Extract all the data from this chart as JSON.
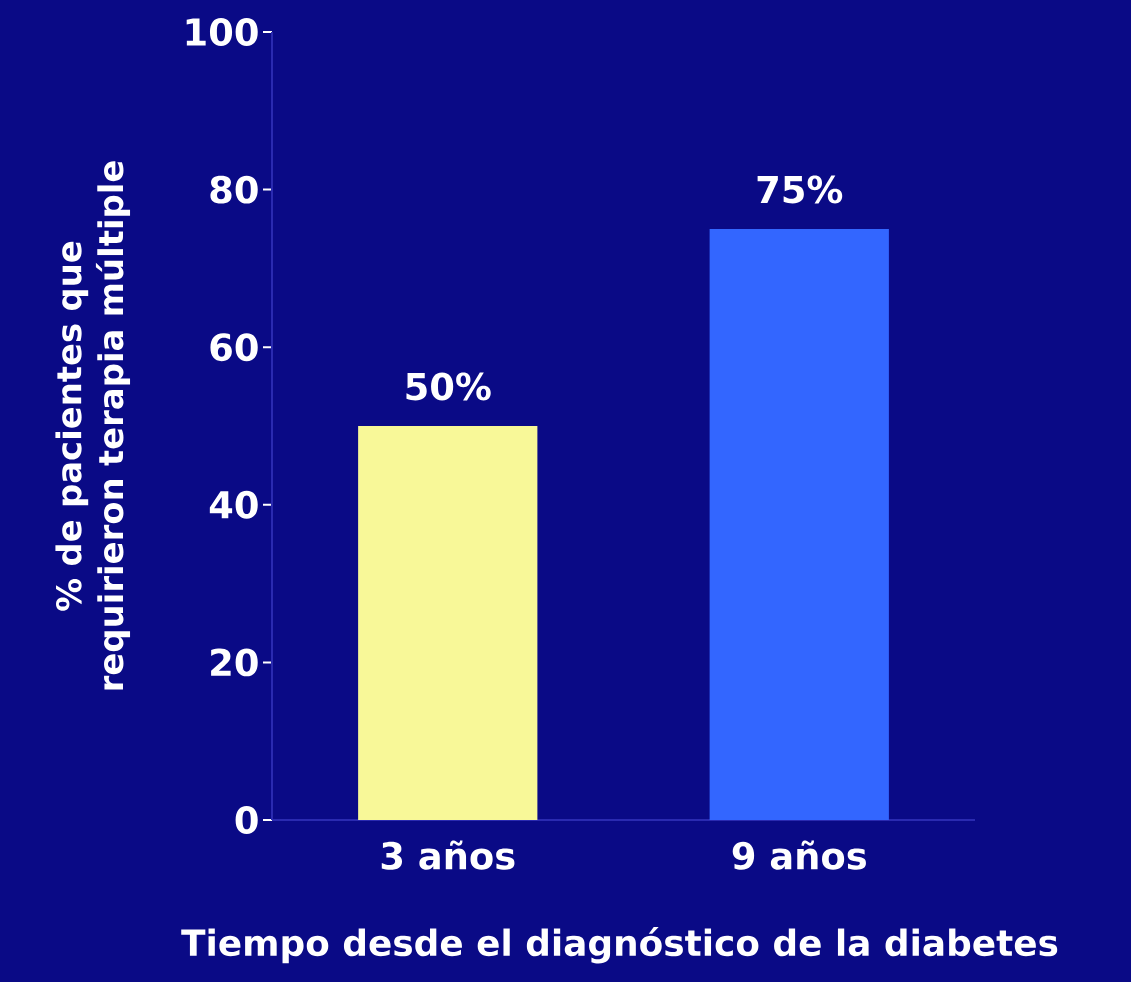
{
  "chart_data": {
    "type": "bar",
    "xlabel": "Tiempo desde el diagnóstico de la diabetes",
    "ylabel": "% de pacientes que requirieron terapia múltiple",
    "categories": [
      "3 años",
      "9 años"
    ],
    "values": [
      50,
      75
    ],
    "colors": [
      "#f8f898",
      "#3366ff"
    ],
    "value_labels": [
      "50%",
      "75%"
    ],
    "ylim": [
      0,
      100
    ],
    "yticks": [
      0,
      20,
      40,
      60,
      80,
      100
    ]
  }
}
